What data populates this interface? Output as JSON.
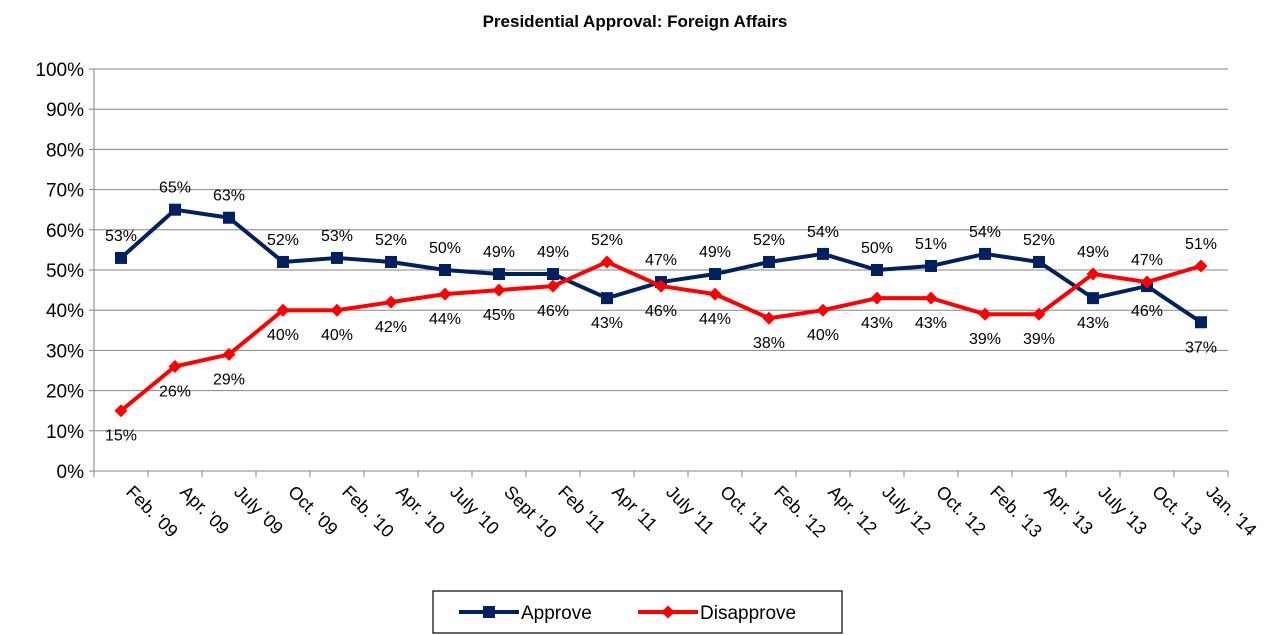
{
  "chart_data": {
    "type": "line",
    "title": "Presidential Approval: Foreign Affairs",
    "xlabel": "",
    "ylabel": "",
    "categories": [
      "Feb. '09",
      "Apr. '09",
      "July '09",
      "Oct. '09",
      "Feb. '10",
      "Apr. '10",
      "July '10",
      "Sept '10",
      "Feb '11",
      "Apr '11",
      "July '11",
      "Oct. '11",
      "Feb. '12",
      "Apr. '12",
      "July '12",
      "Oct. '12",
      "Feb. '13",
      "Apr. '13",
      "July '13",
      "Oct. '13",
      "Jan. '14"
    ],
    "series": [
      {
        "name": "Approve",
        "color": "#002060",
        "marker": "square",
        "values": [
          53,
          65,
          63,
          52,
          53,
          52,
          50,
          49,
          49,
          43,
          47,
          49,
          52,
          54,
          50,
          51,
          54,
          52,
          43,
          46,
          37
        ],
        "labels": [
          "53%",
          "65%",
          "63%",
          "52%",
          "53%",
          "52%",
          "50%",
          "49%",
          "49%",
          "43%",
          "47%",
          "49%",
          "52%",
          "54%",
          "50%",
          "51%",
          "54%",
          "52%",
          "43%",
          "46%",
          "37%"
        ]
      },
      {
        "name": "Disapprove",
        "color": "#FF0000",
        "marker": "diamond",
        "values": [
          15,
          26,
          29,
          40,
          40,
          42,
          44,
          45,
          46,
          52,
          46,
          44,
          38,
          40,
          43,
          43,
          39,
          39,
          49,
          47,
          51
        ],
        "labels": [
          "15%",
          "26%",
          "29%",
          "40%",
          "40%",
          "42%",
          "44%",
          "45%",
          "46%",
          "52%",
          "46%",
          "44%",
          "38%",
          "40%",
          "43%",
          "43%",
          "39%",
          "39%",
          "49%",
          "47%",
          "51%"
        ]
      }
    ],
    "ylim": [
      0,
      100
    ],
    "yticks": [
      0,
      10,
      20,
      30,
      40,
      50,
      60,
      70,
      80,
      90,
      100
    ],
    "ytick_labels": [
      "0%",
      "10%",
      "20%",
      "30%",
      "40%",
      "50%",
      "60%",
      "70%",
      "80%",
      "90%",
      "100%"
    ],
    "grid": true,
    "legend": "bottom"
  }
}
